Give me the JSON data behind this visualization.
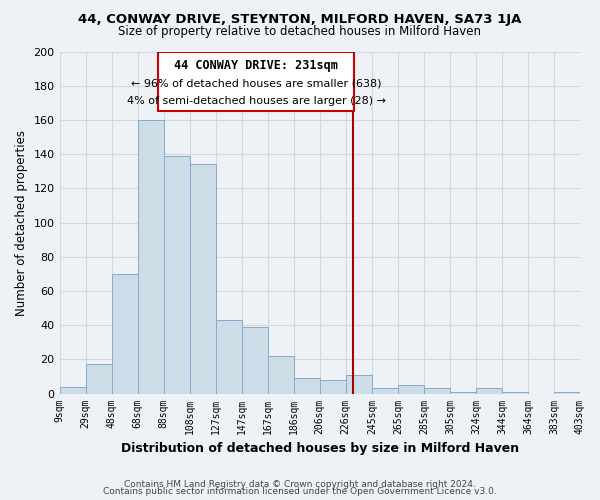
{
  "title": "44, CONWAY DRIVE, STEYNTON, MILFORD HAVEN, SA73 1JA",
  "subtitle": "Size of property relative to detached houses in Milford Haven",
  "xlabel": "Distribution of detached houses by size in Milford Haven",
  "ylabel": "Number of detached properties",
  "bar_labels": [
    "9sqm",
    "29sqm",
    "48sqm",
    "68sqm",
    "88sqm",
    "108sqm",
    "127sqm",
    "147sqm",
    "167sqm",
    "186sqm",
    "206sqm",
    "226sqm",
    "245sqm",
    "265sqm",
    "285sqm",
    "305sqm",
    "324sqm",
    "344sqm",
    "364sqm",
    "383sqm",
    "403sqm"
  ],
  "bar_heights": [
    4,
    17,
    70,
    160,
    139,
    134,
    43,
    39,
    22,
    9,
    8,
    11,
    3,
    5,
    3,
    1,
    3,
    1,
    0,
    1
  ],
  "bar_color": "#ccdde8",
  "bar_edge_color": "#88aacc",
  "property_line_label": "44 CONWAY DRIVE: 231sqm",
  "annotation_line1": "← 96% of detached houses are smaller (638)",
  "annotation_line2": "4% of semi-detached houses are larger (28) →",
  "line_color": "#aa0000",
  "annotation_box_edge": "#cc0000",
  "footer_line1": "Contains HM Land Registry data © Crown copyright and database right 2024.",
  "footer_line2": "Contains public sector information licensed under the Open Government Licence v3.0.",
  "ylim": [
    0,
    200
  ],
  "background_color": "#eef2f7",
  "grid_color": "#d0d8e4",
  "title_fontsize": 9.5,
  "subtitle_fontsize": 8.5
}
